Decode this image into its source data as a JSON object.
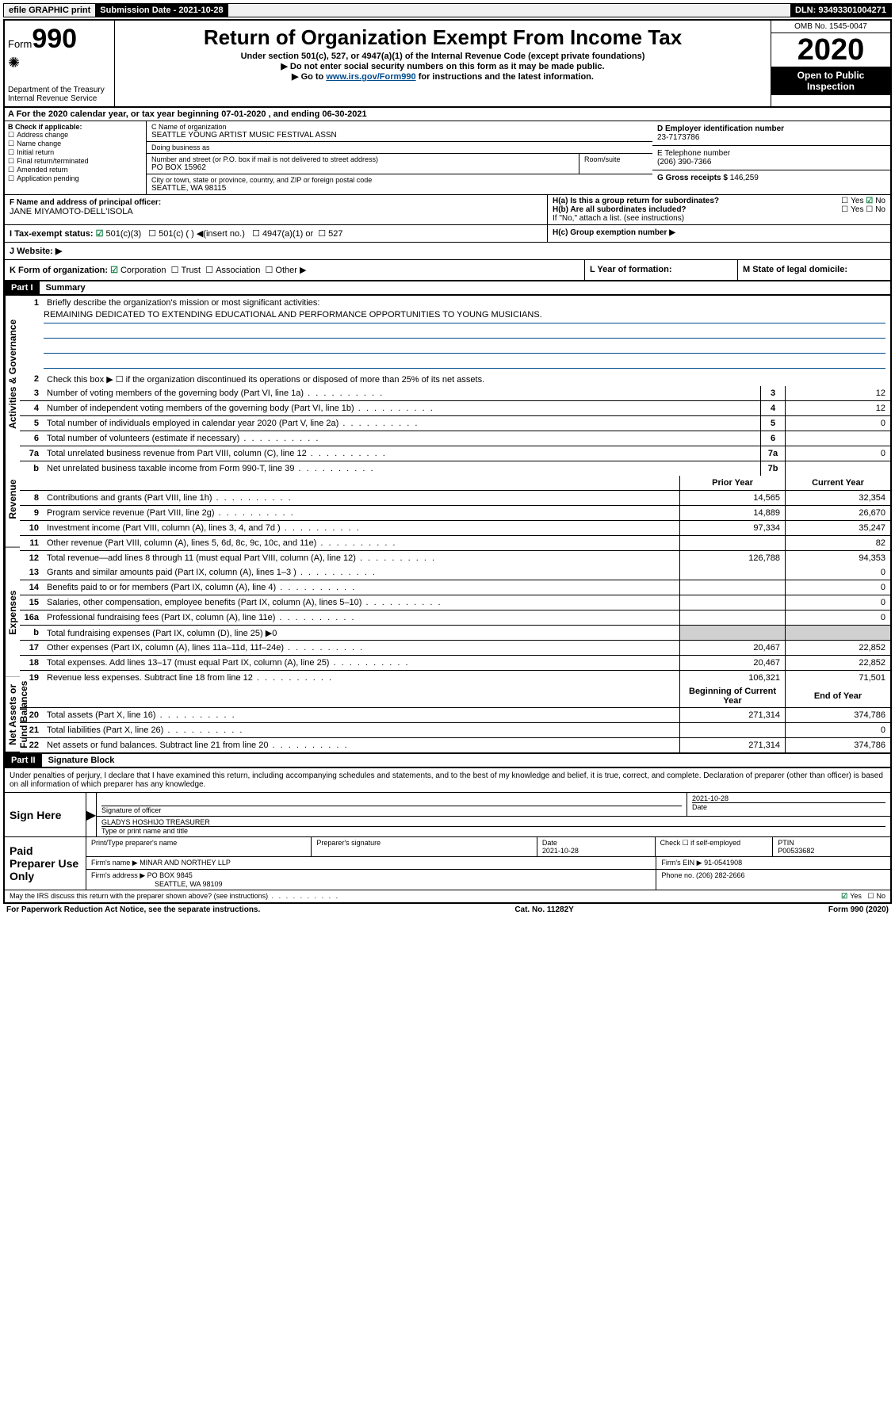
{
  "topbar": {
    "efile": "efile GRAPHIC print",
    "sub_label": "Submission Date - 2021-10-28",
    "dln": "DLN: 93493301004271"
  },
  "header": {
    "form_prefix": "Form",
    "form_num": "990",
    "dept": "Department of the Treasury",
    "irs": "Internal Revenue Service",
    "title": "Return of Organization Exempt From Income Tax",
    "sub1": "Under section 501(c), 527, or 4947(a)(1) of the Internal Revenue Code (except private foundations)",
    "sub2": "▶ Do not enter social security numbers on this form as it may be made public.",
    "sub3_pre": "▶ Go to ",
    "sub3_link": "www.irs.gov/Form990",
    "sub3_post": " for instructions and the latest information.",
    "omb": "OMB No. 1545-0047",
    "year": "2020",
    "open": "Open to Public Inspection"
  },
  "period": "A For the 2020 calendar year, or tax year beginning 07-01-2020   , and ending 06-30-2021",
  "boxB": {
    "label": "B Check if applicable:",
    "items": [
      "Address change",
      "Name change",
      "Initial return",
      "Final return/terminated",
      "Amended return",
      "Application pending"
    ]
  },
  "boxC": {
    "name_label": "C Name of organization",
    "name": "SEATTLE YOUNG ARTIST MUSIC FESTIVAL ASSN",
    "dba_label": "Doing business as",
    "addr_label": "Number and street (or P.O. box if mail is not delivered to street address)",
    "room_label": "Room/suite",
    "addr": "PO BOX 15962",
    "city_label": "City or town, state or province, country, and ZIP or foreign postal code",
    "city": "SEATTLE, WA  98115"
  },
  "boxD": {
    "label": "D Employer identification number",
    "val": "23-7173786"
  },
  "boxE": {
    "label": "E Telephone number",
    "val": "(206) 390-7366"
  },
  "boxG": {
    "label": "G Gross receipts $",
    "val": "146,259"
  },
  "boxF": {
    "label": "F  Name and address of principal officer:",
    "name": "JANE MIYAMOTO-DELL'ISOLA"
  },
  "boxH": {
    "a": "H(a)  Is this a group return for subordinates?",
    "a_no": "No",
    "a_yes": "Yes",
    "b": "H(b)  Are all subordinates included?",
    "b_yes": "Yes",
    "b_no": "No",
    "b_note": "If \"No,\" attach a list. (see instructions)",
    "c": "H(c)  Group exemption number ▶"
  },
  "boxI": {
    "label": "I   Tax-exempt status:",
    "c3": "501(c)(3)",
    "c": "501(c) (  ) ◀(insert no.)",
    "a1": "4947(a)(1) or",
    "527": "527"
  },
  "boxJ": {
    "label": "J   Website: ▶"
  },
  "boxK": {
    "label": "K Form of organization:",
    "corp": "Corporation",
    "trust": "Trust",
    "assoc": "Association",
    "other": "Other ▶"
  },
  "boxL": {
    "label": "L Year of formation:"
  },
  "boxM": {
    "label": "M State of legal domicile:"
  },
  "part1": {
    "header": "Part I",
    "title": "Summary",
    "l1": "Briefly describe the organization's mission or most significant activities:",
    "mission": "REMAINING DEDICATED TO EXTENDING EDUCATIONAL AND PERFORMANCE OPPORTUNITIES TO YOUNG MUSICIANS.",
    "l2": "Check this box ▶ ☐  if the organization discontinued its operations or disposed of more than 25% of its net assets.",
    "sections": {
      "gov": "Activities & Governance",
      "rev": "Revenue",
      "exp": "Expenses",
      "net": "Net Assets or Fund Balances"
    },
    "col_prior": "Prior Year",
    "col_curr": "Current Year",
    "col_beg": "Beginning of Current Year",
    "col_end": "End of Year",
    "lines_gov": [
      {
        "n": "3",
        "d": "Number of voting members of the governing body (Part VI, line 1a)",
        "box": "3",
        "v": "12"
      },
      {
        "n": "4",
        "d": "Number of independent voting members of the governing body (Part VI, line 1b)",
        "box": "4",
        "v": "12"
      },
      {
        "n": "5",
        "d": "Total number of individuals employed in calendar year 2020 (Part V, line 2a)",
        "box": "5",
        "v": "0"
      },
      {
        "n": "6",
        "d": "Total number of volunteers (estimate if necessary)",
        "box": "6",
        "v": ""
      },
      {
        "n": "7a",
        "d": "Total unrelated business revenue from Part VIII, column (C), line 12",
        "box": "7a",
        "v": "0"
      },
      {
        "n": "b",
        "d": "Net unrelated business taxable income from Form 990-T, line 39",
        "box": "7b",
        "v": ""
      }
    ],
    "lines_rev": [
      {
        "n": "8",
        "d": "Contributions and grants (Part VIII, line 1h)",
        "p": "14,565",
        "c": "32,354"
      },
      {
        "n": "9",
        "d": "Program service revenue (Part VIII, line 2g)",
        "p": "14,889",
        "c": "26,670"
      },
      {
        "n": "10",
        "d": "Investment income (Part VIII, column (A), lines 3, 4, and 7d )",
        "p": "97,334",
        "c": "35,247"
      },
      {
        "n": "11",
        "d": "Other revenue (Part VIII, column (A), lines 5, 6d, 8c, 9c, 10c, and 11e)",
        "p": "",
        "c": "82"
      },
      {
        "n": "12",
        "d": "Total revenue—add lines 8 through 11 (must equal Part VIII, column (A), line 12)",
        "p": "126,788",
        "c": "94,353"
      }
    ],
    "lines_exp": [
      {
        "n": "13",
        "d": "Grants and similar amounts paid (Part IX, column (A), lines 1–3 )",
        "p": "",
        "c": "0"
      },
      {
        "n": "14",
        "d": "Benefits paid to or for members (Part IX, column (A), line 4)",
        "p": "",
        "c": "0"
      },
      {
        "n": "15",
        "d": "Salaries, other compensation, employee benefits (Part IX, column (A), lines 5–10)",
        "p": "",
        "c": "0"
      },
      {
        "n": "16a",
        "d": "Professional fundraising fees (Part IX, column (A), line 11e)",
        "p": "",
        "c": "0"
      },
      {
        "n": "b",
        "d": "Total fundraising expenses (Part IX, column (D), line 25) ▶0",
        "shade": true
      },
      {
        "n": "17",
        "d": "Other expenses (Part IX, column (A), lines 11a–11d, 11f–24e)",
        "p": "20,467",
        "c": "22,852"
      },
      {
        "n": "18",
        "d": "Total expenses. Add lines 13–17 (must equal Part IX, column (A), line 25)",
        "p": "20,467",
        "c": "22,852"
      },
      {
        "n": "19",
        "d": "Revenue less expenses. Subtract line 18 from line 12",
        "p": "106,321",
        "c": "71,501"
      }
    ],
    "lines_net": [
      {
        "n": "20",
        "d": "Total assets (Part X, line 16)",
        "p": "271,314",
        "c": "374,786"
      },
      {
        "n": "21",
        "d": "Total liabilities (Part X, line 26)",
        "p": "",
        "c": "0"
      },
      {
        "n": "22",
        "d": "Net assets or fund balances. Subtract line 21 from line 20",
        "p": "271,314",
        "c": "374,786"
      }
    ]
  },
  "part2": {
    "header": "Part II",
    "title": "Signature Block",
    "declare": "Under penalties of perjury, I declare that I have examined this return, including accompanying schedules and statements, and to the best of my knowledge and belief, it is true, correct, and complete. Declaration of preparer (other than officer) is based on all information of which preparer has any knowledge.",
    "sign_here": "Sign Here",
    "sig_officer": "Signature of officer",
    "sig_date": "2021-10-28",
    "date_label": "Date",
    "officer_name": "GLADYS HOSHIJO  TREASURER",
    "type_name": "Type or print name and title",
    "paid": "Paid Preparer Use Only",
    "prep_name_label": "Print/Type preparer's name",
    "prep_sig_label": "Preparer's signature",
    "prep_date": "2021-10-28",
    "check_self": "Check ☐ if self-employed",
    "ptin_label": "PTIN",
    "ptin": "P00533682",
    "firm_name_label": "Firm's name    ▶",
    "firm_name": "MINAR AND NORTHEY LLP",
    "firm_ein_label": "Firm's EIN ▶",
    "firm_ein": "91-0541908",
    "firm_addr_label": "Firm's address ▶",
    "firm_addr1": "PO BOX 9845",
    "firm_addr2": "SEATTLE, WA  98109",
    "phone_label": "Phone no.",
    "phone": "(206) 282-2666",
    "discuss": "May the IRS discuss this return with the preparer shown above? (see instructions)",
    "discuss_yes": "Yes",
    "discuss_no": "No"
  },
  "footer": {
    "left": "For Paperwork Reduction Act Notice, see the separate instructions.",
    "mid": "Cat. No. 11282Y",
    "right": "Form 990 (2020)"
  }
}
